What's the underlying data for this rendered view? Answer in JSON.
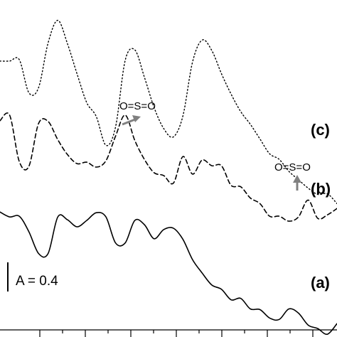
{
  "chart_data": {
    "type": "line",
    "title": "",
    "xlabel": "",
    "ylabel": "",
    "grid": false,
    "legend": "inline labels at right end of each trace",
    "x_tick_labels": [],
    "series": [
      {
        "name": "(a)",
        "line_style": "solid",
        "values": [
          178,
          171,
          172,
          150,
          119,
          119,
          171,
          167,
          157,
          166,
          177,
          171,
          134,
          134,
          166,
          160,
          140,
          153,
          155,
          139,
          110,
          91,
          74,
          68,
          53,
          55,
          40,
          39,
          27,
          25,
          40,
          34,
          17,
          12,
          4,
          19
        ]
      },
      {
        "name": "(b)",
        "line_style": "dashed",
        "values": [
          308,
          316,
          250,
          243,
          304,
          307,
          281,
          260,
          247,
          249,
          242,
          251,
          286,
          316,
          280,
          253,
          234,
          230,
          219,
          257,
          232,
          252,
          244,
          244,
          216,
          214,
          198,
          190,
          172,
          172,
          165,
          171,
          195,
          169,
          174,
          183
        ]
      },
      {
        "name": "(c)",
        "line_style": "dotted",
        "values": [
          393,
          393,
          395,
          348,
          355,
          419,
          451,
          418,
          375,
          334,
          314,
          273,
          299,
          394,
          409,
          370,
          327,
          297,
          285,
          315,
          392,
          423,
          408,
          375,
          346,
          321,
          303,
          282,
          261,
          253,
          236,
          224,
          212,
          203,
          204,
          190
        ]
      }
    ]
  },
  "annotations": {
    "scale_bar": "A = 0.4",
    "arrows": [
      {
        "label": "O=S=O",
        "color": "#808080"
      },
      {
        "label": "O=S=O",
        "color": "#808080"
      }
    ]
  },
  "colors": {
    "traces": "#000000",
    "arrows": "#808080",
    "background": "#ffffff"
  }
}
